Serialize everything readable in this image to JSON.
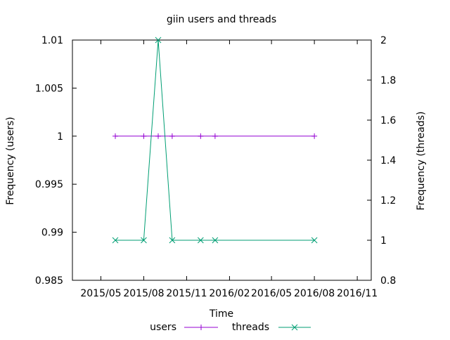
{
  "chart_data": {
    "type": "line",
    "title": "giin users and threads",
    "xlabel": "Time",
    "ylabel": "Frequency (users)",
    "y2label": "Frequency (threads)",
    "x_ticks": [
      "2015/05",
      "2015/08",
      "2015/11",
      "2016/02",
      "2016/05",
      "2016/08",
      "2016/11"
    ],
    "y_ticks": [
      "0.985",
      "0.99",
      "0.995",
      "1",
      "1.005",
      "1.01"
    ],
    "y2_ticks": [
      "0.8",
      "1",
      "1.2",
      "1.4",
      "1.6",
      "1.8",
      "2"
    ],
    "xlim": [
      "2015-03-01",
      "2016-12-01"
    ],
    "ylim": [
      0.985,
      1.01
    ],
    "y2lim": [
      0.8,
      2
    ],
    "grid": false,
    "legend_position": "bottom-center",
    "series": [
      {
        "name": "users",
        "axis": "left",
        "color": "#9400d3",
        "marker": "plus",
        "points": [
          {
            "x": "2015-06-01",
            "y": 1
          },
          {
            "x": "2015-08-01",
            "y": 1
          },
          {
            "x": "2015-09-01",
            "y": 1
          },
          {
            "x": "2015-10-01",
            "y": 1
          },
          {
            "x": "2015-12-01",
            "y": 1
          },
          {
            "x": "2016-01-01",
            "y": 1
          },
          {
            "x": "2016-08-01",
            "y": 1
          }
        ]
      },
      {
        "name": "threads",
        "axis": "right",
        "color": "#009e73",
        "marker": "cross",
        "points": [
          {
            "x": "2015-06-01",
            "y": 1
          },
          {
            "x": "2015-08-01",
            "y": 1
          },
          {
            "x": "2015-09-01",
            "y": 2
          },
          {
            "x": "2015-10-01",
            "y": 1
          },
          {
            "x": "2015-12-01",
            "y": 1
          },
          {
            "x": "2016-01-01",
            "y": 1
          },
          {
            "x": "2016-08-01",
            "y": 1
          }
        ]
      }
    ]
  }
}
